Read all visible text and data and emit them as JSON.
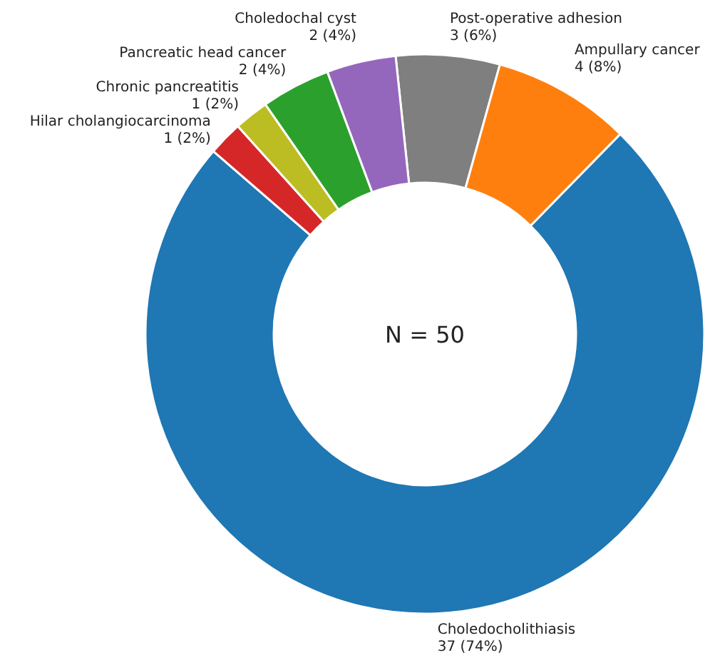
{
  "chart_data": {
    "type": "donut",
    "categories": [
      "Post-operative adhesion",
      "Ampullary cancer",
      "Choledocholithiasis",
      "Hilar cholangiocarcinoma",
      "Chronic pancreatitis",
      "Pancreatic head cancer",
      "Choledochal cyst"
    ],
    "values": [
      3,
      4,
      37,
      1,
      1,
      2,
      2
    ],
    "colors": [
      "#7f7f7f",
      "#ff7f0e",
      "#1f77b4",
      "#d62728",
      "#bcbd22",
      "#2ca02c",
      "#9467bd"
    ],
    "value_labels": [
      "3 (6%)",
      "4 (8%)",
      "37 (74%)",
      "1 (2%)",
      "1 (2%)",
      "2 (4%)",
      "2 (4%)"
    ],
    "annotations": [
      "N = 50"
    ]
  }
}
